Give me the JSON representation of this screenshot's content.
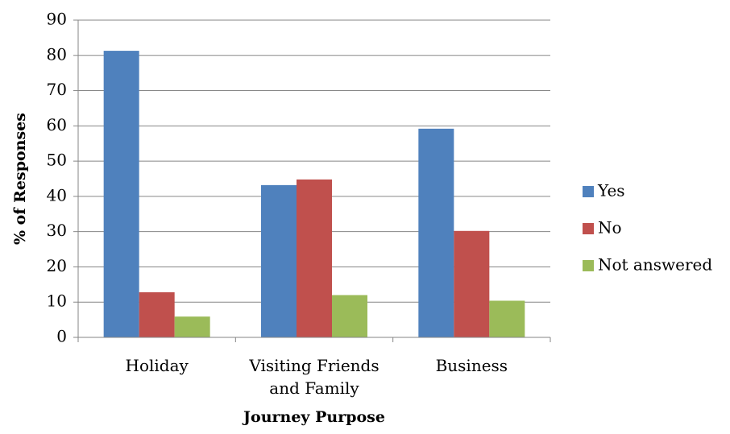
{
  "chart_data": {
    "type": "bar",
    "categories": [
      [
        "Holiday"
      ],
      [
        "Visiting Friends",
        "and Family"
      ],
      [
        "Business"
      ]
    ],
    "series": [
      {
        "name": "Yes",
        "color": "#4f81bd",
        "values": [
          81.3,
          43.2,
          59.2
        ]
      },
      {
        "name": "No",
        "color": "#c0504d",
        "values": [
          12.8,
          44.8,
          30.2
        ]
      },
      {
        "name": "Not answered",
        "color": "#9bbb59",
        "values": [
          5.9,
          12.0,
          10.4
        ]
      }
    ],
    "xlabel": "Journey Purpose",
    "ylabel": "% of Responses",
    "ylim": [
      0,
      90
    ],
    "yticks": [
      0,
      10,
      20,
      30,
      40,
      50,
      60,
      70,
      80,
      90
    ],
    "grid": true,
    "legend_position": "right"
  }
}
